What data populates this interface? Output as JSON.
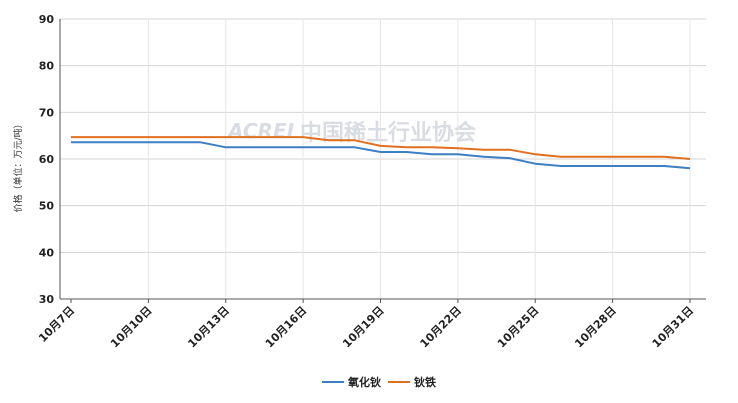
{
  "chart_data": {
    "type": "line",
    "title": "",
    "xlabel": "",
    "ylabel": "价格（单位：万元/吨）",
    "ylim": [
      30,
      90
    ],
    "yticks": [
      30,
      40,
      50,
      60,
      70,
      80,
      90
    ],
    "xticks": [
      "10月7日",
      "10月10日",
      "10月13日",
      "10月16日",
      "10月19日",
      "10月22日",
      "10月25日",
      "10月28日",
      "10月31日"
    ],
    "x": [
      "10月7日",
      "10月8日",
      "10月9日",
      "10月10日",
      "10月11日",
      "10月12日",
      "10月13日",
      "10月14日",
      "10月15日",
      "10月16日",
      "10月17日",
      "10月18日",
      "10月19日",
      "10月20日",
      "10月21日",
      "10月22日",
      "10月23日",
      "10月24日",
      "10月25日",
      "10月26日",
      "10月27日",
      "10月28日",
      "10月29日",
      "10月30日",
      "10月31日"
    ],
    "series": [
      {
        "name": "氧化钬",
        "color": "#3c7fc4",
        "values": [
          63.6,
          63.6,
          63.6,
          63.6,
          63.6,
          63.6,
          62.5,
          62.5,
          62.5,
          62.5,
          62.5,
          62.5,
          61.5,
          61.5,
          61.0,
          61.0,
          60.5,
          60.2,
          59.0,
          58.5,
          58.5,
          58.5,
          58.5,
          58.5,
          58.0
        ]
      },
      {
        "name": "钬铁",
        "color": "#e07020",
        "values": [
          64.7,
          64.7,
          64.7,
          64.7,
          64.7,
          64.7,
          64.7,
          64.7,
          64.7,
          64.7,
          64.0,
          64.0,
          62.8,
          62.5,
          62.5,
          62.3,
          62.0,
          62.0,
          61.0,
          60.5,
          60.5,
          60.5,
          60.5,
          60.5,
          60.0
        ]
      }
    ],
    "grid": true,
    "legend_position": "bottom-center"
  },
  "watermark": {
    "latin": "ACREI",
    "text": "中国稀土行业协会"
  }
}
